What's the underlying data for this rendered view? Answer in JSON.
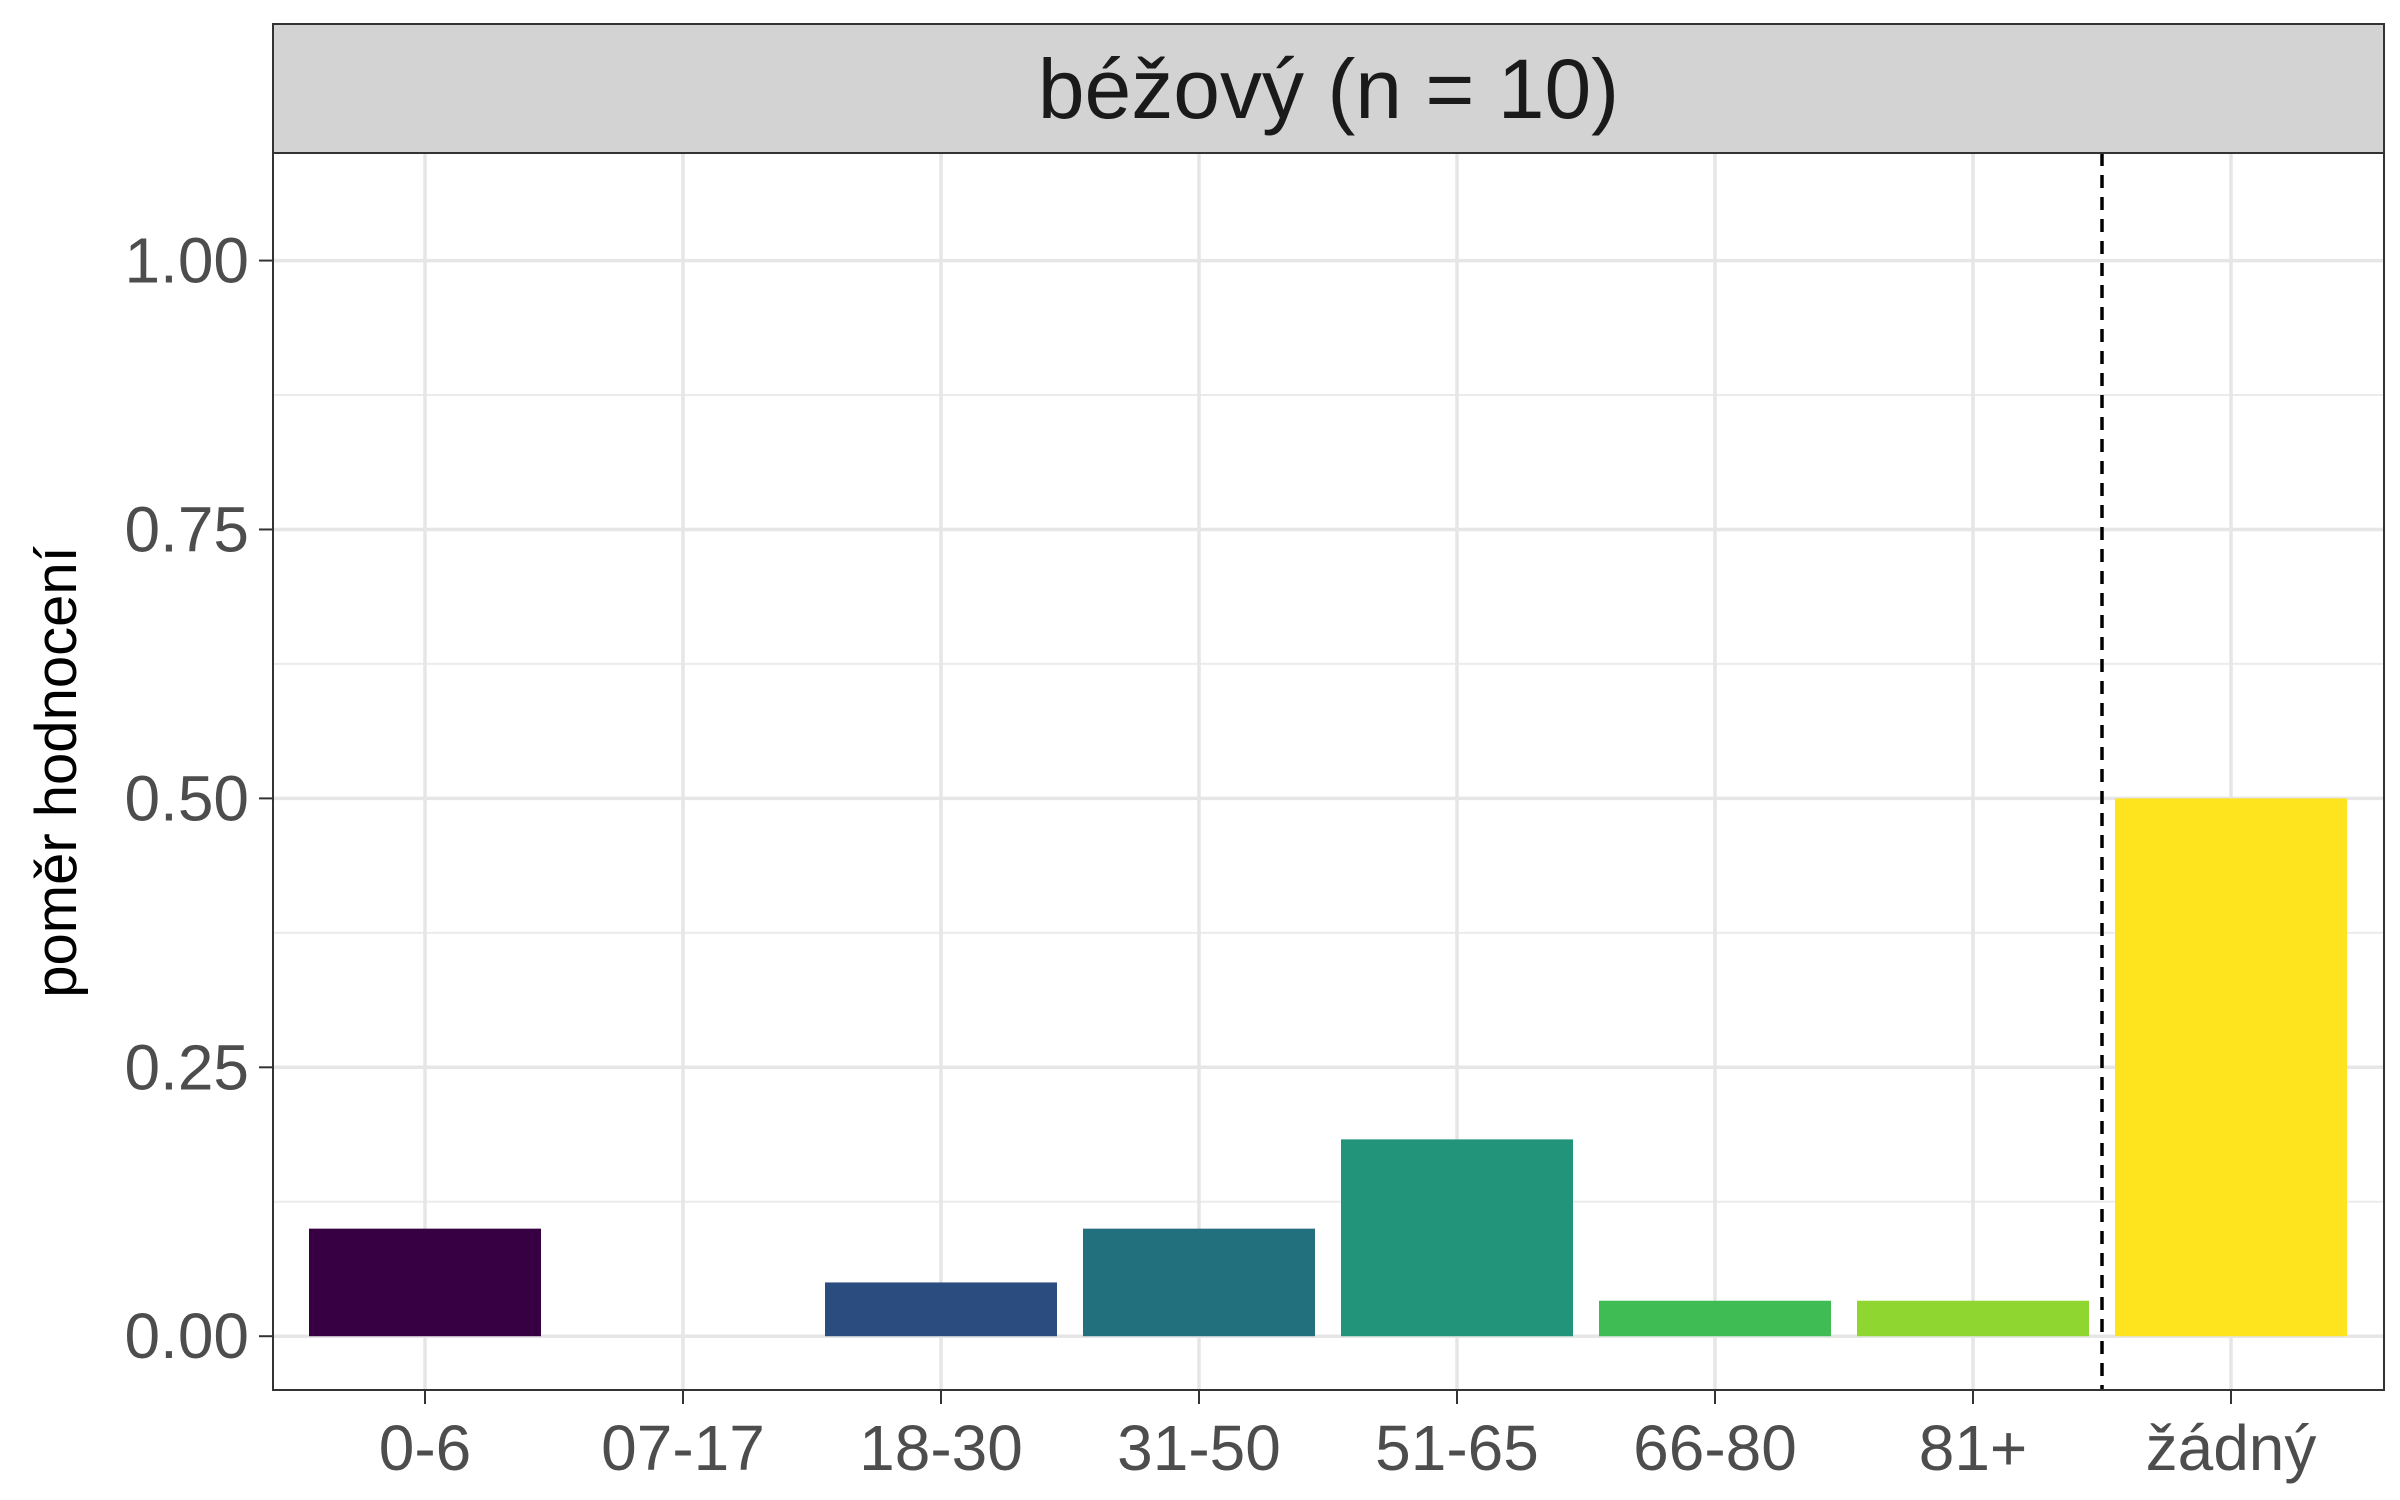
{
  "chart_data": {
    "type": "bar",
    "title": "béžový (n = 10)",
    "xlabel": "",
    "ylabel": "poměr hodnocení",
    "categories": [
      "0-6",
      "07-17",
      "18-30",
      "31-50",
      "51-65",
      "66-80",
      "81+",
      "žádný"
    ],
    "values": [
      0.1,
      0.0,
      0.05,
      0.1,
      0.183,
      0.033,
      0.033,
      0.5
    ],
    "colors": [
      "#360043",
      "#440154",
      "#2B4C7E",
      "#226F7E",
      "#21947A",
      "#40BC55",
      "#8FD630",
      "#FDE41F"
    ],
    "ylim": [
      -0.05,
      1.1
    ],
    "yticks": [
      0,
      0.25,
      0.5,
      0.75,
      1.0
    ],
    "ytick_labels": [
      "0.00",
      "0.25",
      "0.50",
      "0.75",
      "1.00"
    ],
    "separator_after_category": "81+",
    "grid": true,
    "legend": "none"
  }
}
